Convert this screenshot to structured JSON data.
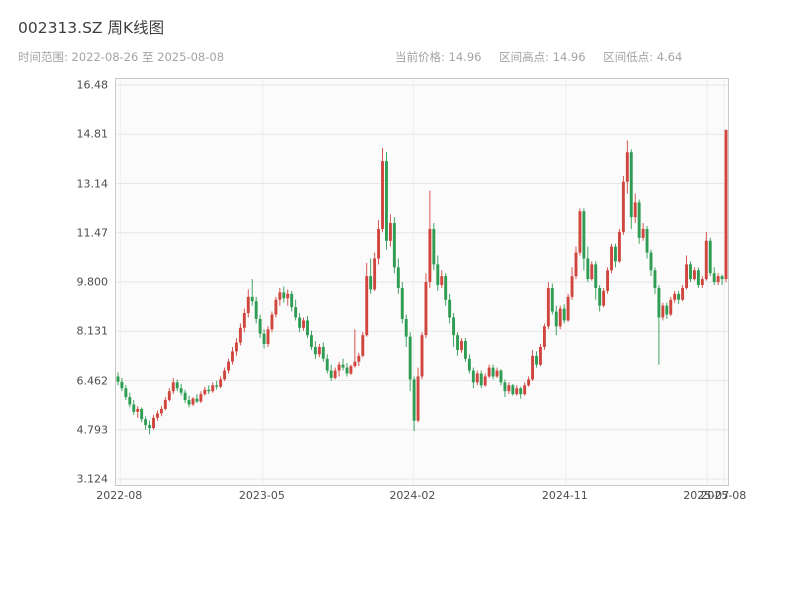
{
  "header": {
    "title": "002313.SZ 周K线图",
    "time_range": "时间范围: 2022-08-26 至 2025-08-08",
    "stats": [
      "当前价格: 14.96",
      "区间高点: 14.96",
      "区间低点: 4.64"
    ]
  },
  "chart_data": {
    "type": "candlestick",
    "title": "002313.SZ 周K线图",
    "xlabel": "",
    "ylabel": "",
    "period": "weekly",
    "ylim": [
      3.124,
      16.48
    ],
    "grid": true,
    "colors": {
      "up": "#d0453e",
      "down": "#2e9c52"
    },
    "y_ticks": [
      {
        "v": 16.48,
        "label": "16.48"
      },
      {
        "v": 14.81,
        "label": "14.81"
      },
      {
        "v": 13.14,
        "label": "13.14"
      },
      {
        "v": 11.47,
        "label": "11.47"
      },
      {
        "v": 9.8,
        "label": "9.800"
      },
      {
        "v": 8.131,
        "label": "8.131"
      },
      {
        "v": 6.462,
        "label": "6.462"
      },
      {
        "v": 4.793,
        "label": "4.793"
      },
      {
        "v": 3.124,
        "label": "3.124"
      }
    ],
    "x_ticks": [
      {
        "pos": 0.007,
        "label": "2022-08"
      },
      {
        "pos": 0.24,
        "label": "2023-05"
      },
      {
        "pos": 0.486,
        "label": "2024-02"
      },
      {
        "pos": 0.735,
        "label": "2024-11"
      },
      {
        "pos": 0.966,
        "label": "2025-07"
      },
      {
        "pos": 0.994,
        "label": "2025-08"
      }
    ],
    "candles": [
      [
        6.6,
        6.74,
        6.3,
        6.42
      ],
      [
        6.42,
        6.55,
        6.1,
        6.2
      ],
      [
        6.2,
        6.3,
        5.8,
        5.9
      ],
      [
        5.9,
        6.05,
        5.55,
        5.65
      ],
      [
        5.65,
        5.8,
        5.3,
        5.4
      ],
      [
        5.4,
        5.6,
        5.2,
        5.5
      ],
      [
        5.5,
        5.55,
        5.05,
        5.15
      ],
      [
        5.15,
        5.25,
        4.8,
        4.95
      ],
      [
        4.95,
        5.1,
        4.64,
        4.85
      ],
      [
        4.85,
        5.3,
        4.8,
        5.2
      ],
      [
        5.2,
        5.45,
        5.1,
        5.35
      ],
      [
        5.35,
        5.6,
        5.25,
        5.5
      ],
      [
        5.5,
        5.9,
        5.45,
        5.8
      ],
      [
        5.8,
        6.2,
        5.75,
        6.1
      ],
      [
        6.1,
        6.55,
        6.0,
        6.4
      ],
      [
        6.4,
        6.5,
        6.1,
        6.2
      ],
      [
        6.2,
        6.35,
        5.95,
        6.05
      ],
      [
        6.05,
        6.15,
        5.7,
        5.8
      ],
      [
        5.8,
        5.95,
        5.55,
        5.65
      ],
      [
        5.65,
        5.9,
        5.6,
        5.85
      ],
      [
        5.85,
        6.0,
        5.7,
        5.75
      ],
      [
        5.75,
        6.1,
        5.7,
        6.0
      ],
      [
        6.0,
        6.25,
        5.95,
        6.15
      ],
      [
        6.15,
        6.3,
        6.0,
        6.1
      ],
      [
        6.1,
        6.4,
        6.05,
        6.3
      ],
      [
        6.3,
        6.45,
        6.15,
        6.25
      ],
      [
        6.25,
        6.6,
        6.2,
        6.5
      ],
      [
        6.5,
        6.9,
        6.45,
        6.8
      ],
      [
        6.8,
        7.2,
        6.7,
        7.1
      ],
      [
        7.1,
        7.6,
        7.0,
        7.45
      ],
      [
        7.45,
        7.9,
        7.3,
        7.75
      ],
      [
        7.75,
        8.4,
        7.65,
        8.25
      ],
      [
        8.25,
        8.9,
        8.1,
        8.75
      ],
      [
        8.75,
        9.55,
        8.6,
        9.3
      ],
      [
        9.3,
        9.9,
        9.0,
        9.15
      ],
      [
        9.15,
        9.3,
        8.4,
        8.55
      ],
      [
        8.55,
        8.7,
        7.9,
        8.05
      ],
      [
        8.05,
        8.2,
        7.55,
        7.7
      ],
      [
        7.7,
        8.3,
        7.6,
        8.2
      ],
      [
        8.2,
        8.8,
        8.1,
        8.7
      ],
      [
        8.7,
        9.3,
        8.6,
        9.2
      ],
      [
        9.2,
        9.6,
        9.0,
        9.45
      ],
      [
        9.45,
        9.65,
        9.1,
        9.25
      ],
      [
        9.25,
        9.55,
        9.0,
        9.4
      ],
      [
        9.4,
        9.5,
        8.8,
        8.95
      ],
      [
        8.95,
        9.2,
        8.5,
        8.6
      ],
      [
        8.6,
        8.75,
        8.1,
        8.25
      ],
      [
        8.25,
        8.6,
        8.15,
        8.5
      ],
      [
        8.5,
        8.65,
        7.9,
        8.0
      ],
      [
        8.0,
        8.15,
        7.5,
        7.6
      ],
      [
        7.6,
        7.8,
        7.2,
        7.35
      ],
      [
        7.35,
        7.7,
        7.25,
        7.6
      ],
      [
        7.6,
        7.75,
        7.1,
        7.2
      ],
      [
        7.2,
        7.35,
        6.7,
        6.8
      ],
      [
        6.8,
        7.0,
        6.45,
        6.55
      ],
      [
        6.55,
        6.9,
        6.5,
        6.8
      ],
      [
        6.8,
        7.1,
        6.6,
        7.0
      ],
      [
        7.0,
        7.2,
        6.8,
        6.9
      ],
      [
        6.9,
        7.05,
        6.6,
        6.7
      ],
      [
        6.7,
        7.0,
        6.65,
        6.95
      ],
      [
        6.95,
        8.2,
        6.9,
        7.1
      ],
      [
        7.1,
        7.4,
        6.95,
        7.3
      ],
      [
        7.3,
        8.1,
        7.25,
        8.0
      ],
      [
        8.0,
        10.45,
        7.95,
        10.0
      ],
      [
        10.0,
        10.6,
        9.4,
        9.55
      ],
      [
        9.55,
        10.8,
        9.5,
        10.6
      ],
      [
        10.6,
        11.9,
        10.4,
        11.6
      ],
      [
        11.6,
        14.35,
        11.5,
        13.9
      ],
      [
        13.9,
        14.2,
        10.9,
        11.2
      ],
      [
        11.2,
        12.1,
        11.0,
        11.8
      ],
      [
        11.8,
        12.0,
        10.1,
        10.3
      ],
      [
        10.3,
        10.6,
        9.4,
        9.6
      ],
      [
        9.6,
        9.8,
        8.4,
        8.55
      ],
      [
        8.55,
        8.7,
        7.6,
        7.95
      ],
      [
        7.95,
        8.1,
        6.1,
        6.5
      ],
      [
        6.5,
        6.6,
        4.75,
        5.1
      ],
      [
        5.1,
        6.9,
        5.05,
        6.6
      ],
      [
        6.6,
        8.1,
        6.5,
        8.0
      ],
      [
        8.0,
        10.1,
        7.9,
        9.8
      ],
      [
        9.8,
        12.9,
        9.6,
        11.6
      ],
      [
        11.6,
        11.8,
        10.2,
        10.4
      ],
      [
        10.4,
        10.7,
        9.5,
        9.7
      ],
      [
        9.7,
        10.2,
        9.6,
        10.0
      ],
      [
        10.0,
        10.1,
        9.0,
        9.2
      ],
      [
        9.2,
        9.4,
        8.4,
        8.6
      ],
      [
        8.6,
        8.75,
        7.6,
        8.0
      ],
      [
        8.0,
        8.1,
        7.3,
        7.5
      ],
      [
        7.5,
        7.9,
        7.4,
        7.8
      ],
      [
        7.8,
        7.9,
        7.1,
        7.2
      ],
      [
        7.2,
        7.35,
        6.7,
        6.8
      ],
      [
        6.8,
        6.9,
        6.2,
        6.4
      ],
      [
        6.4,
        6.8,
        6.3,
        6.7
      ],
      [
        6.7,
        6.8,
        6.2,
        6.3
      ],
      [
        6.3,
        6.7,
        6.25,
        6.6
      ],
      [
        6.6,
        7.0,
        6.55,
        6.9
      ],
      [
        6.9,
        7.0,
        6.5,
        6.6
      ],
      [
        6.6,
        6.9,
        6.55,
        6.8
      ],
      [
        6.8,
        6.85,
        6.3,
        6.4
      ],
      [
        6.4,
        6.5,
        5.9,
        6.1
      ],
      [
        6.1,
        6.4,
        6.0,
        6.3
      ],
      [
        6.3,
        6.35,
        5.95,
        6.0
      ],
      [
        6.0,
        6.3,
        5.95,
        6.2
      ],
      [
        6.2,
        6.25,
        5.85,
        6.0
      ],
      [
        6.0,
        6.4,
        5.95,
        6.3
      ],
      [
        6.3,
        6.6,
        6.25,
        6.5
      ],
      [
        6.5,
        7.5,
        6.45,
        7.3
      ],
      [
        7.3,
        7.45,
        6.9,
        7.0
      ],
      [
        7.0,
        7.7,
        6.95,
        7.6
      ],
      [
        7.6,
        8.4,
        7.5,
        8.3
      ],
      [
        8.3,
        9.8,
        8.2,
        9.6
      ],
      [
        9.6,
        9.75,
        8.7,
        8.8
      ],
      [
        8.8,
        9.0,
        8.0,
        8.3
      ],
      [
        8.3,
        9.0,
        8.2,
        8.9
      ],
      [
        8.9,
        9.05,
        8.4,
        8.5
      ],
      [
        8.5,
        9.4,
        8.45,
        9.3
      ],
      [
        9.3,
        10.3,
        9.2,
        10.0
      ],
      [
        10.0,
        11.0,
        9.9,
        10.8
      ],
      [
        10.8,
        12.3,
        10.7,
        12.2
      ],
      [
        12.2,
        12.3,
        10.2,
        10.6
      ],
      [
        10.6,
        11.0,
        9.8,
        9.9
      ],
      [
        9.9,
        10.5,
        9.85,
        10.4
      ],
      [
        10.4,
        10.5,
        9.2,
        9.6
      ],
      [
        9.6,
        9.7,
        8.8,
        9.0
      ],
      [
        9.0,
        9.6,
        8.95,
        9.5
      ],
      [
        9.5,
        10.3,
        9.4,
        10.2
      ],
      [
        10.2,
        11.1,
        10.1,
        11.0
      ],
      [
        11.0,
        11.1,
        10.3,
        10.5
      ],
      [
        10.5,
        11.6,
        10.45,
        11.5
      ],
      [
        11.5,
        13.4,
        11.4,
        13.2
      ],
      [
        13.2,
        14.6,
        12.8,
        14.2
      ],
      [
        14.2,
        14.3,
        11.6,
        12.0
      ],
      [
        12.0,
        12.8,
        11.8,
        12.5
      ],
      [
        12.5,
        12.6,
        11.1,
        11.3
      ],
      [
        11.3,
        11.8,
        11.2,
        11.6
      ],
      [
        11.6,
        11.7,
        10.6,
        10.8
      ],
      [
        10.8,
        10.9,
        10.0,
        10.2
      ],
      [
        10.2,
        10.3,
        9.4,
        9.6
      ],
      [
        9.6,
        9.7,
        7.0,
        8.6
      ],
      [
        8.6,
        9.1,
        8.5,
        9.0
      ],
      [
        9.0,
        9.1,
        8.55,
        8.7
      ],
      [
        8.7,
        9.3,
        8.65,
        9.2
      ],
      [
        9.2,
        9.5,
        9.1,
        9.4
      ],
      [
        9.4,
        9.5,
        9.05,
        9.2
      ],
      [
        9.2,
        9.7,
        9.15,
        9.6
      ],
      [
        9.6,
        10.7,
        9.55,
        10.4
      ],
      [
        10.4,
        10.5,
        9.8,
        9.9
      ],
      [
        9.9,
        10.3,
        9.85,
        10.2
      ],
      [
        10.2,
        10.3,
        9.6,
        9.7
      ],
      [
        9.7,
        10.0,
        9.6,
        9.9
      ],
      [
        9.9,
        11.5,
        9.85,
        11.2
      ],
      [
        11.2,
        11.3,
        10.0,
        10.1
      ],
      [
        10.1,
        10.3,
        9.7,
        9.8
      ],
      [
        9.8,
        10.1,
        9.7,
        10.0
      ],
      [
        10.0,
        10.05,
        9.7,
        9.9
      ],
      [
        9.9,
        14.96,
        9.8,
        14.96
      ]
    ]
  }
}
